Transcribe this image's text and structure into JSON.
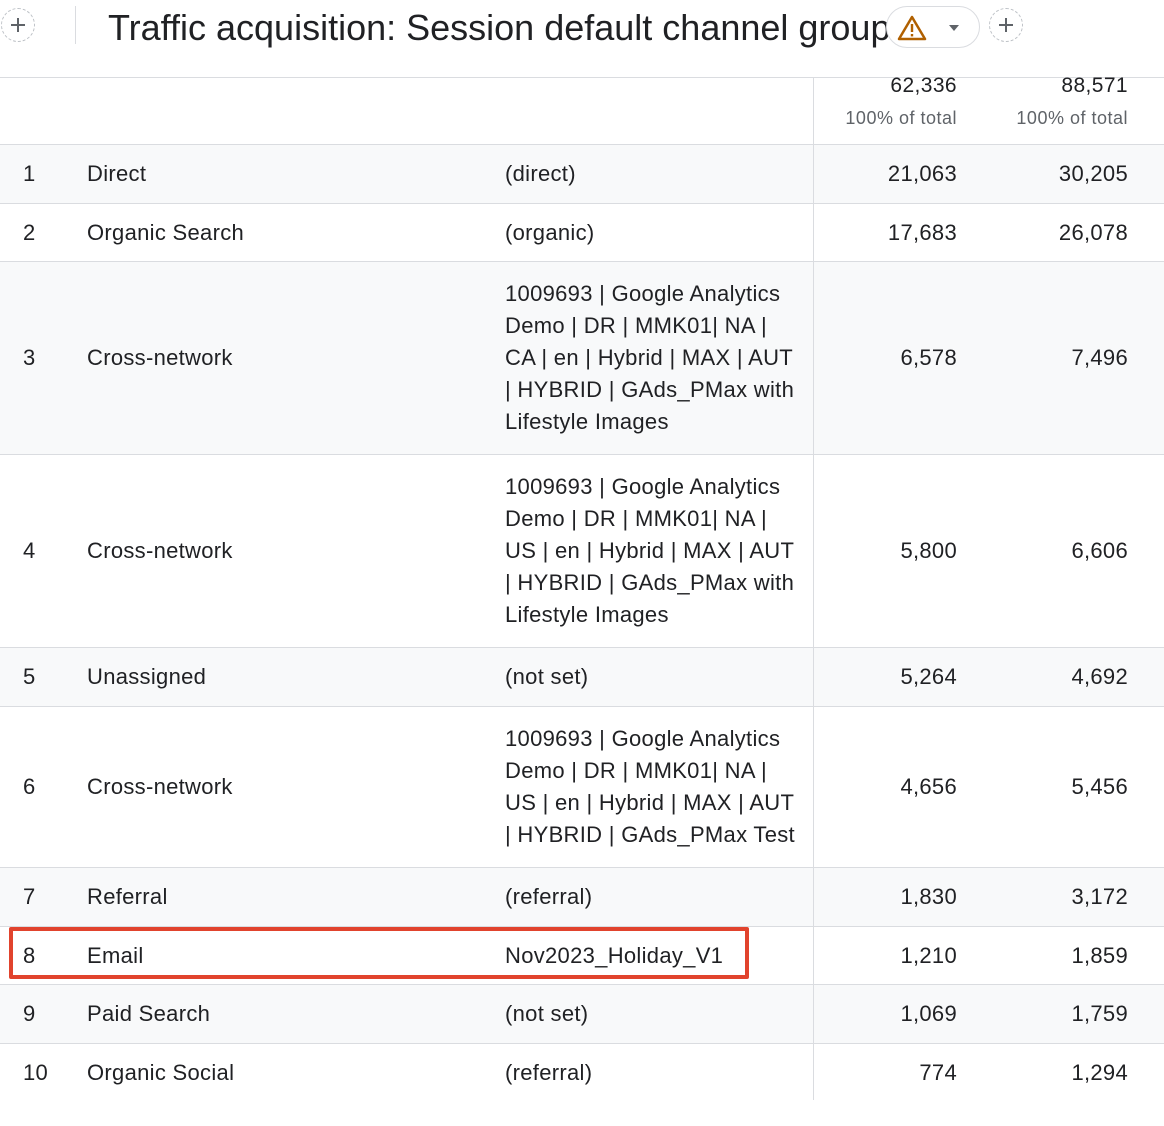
{
  "header": {
    "title": "Traffic acquisition: Session default channel group",
    "icons": [
      "plus-icon",
      "warning-icon",
      "chevron-down-icon",
      "plus-icon"
    ],
    "colors": {
      "warning": "#b06000",
      "highlight": "#e1432d"
    }
  },
  "totals": {
    "metric1": {
      "value": "62,336",
      "percent": "100% of total"
    },
    "metric2": {
      "value": "88,571",
      "percent": "100% of total"
    }
  },
  "rows": [
    {
      "rank": "1",
      "channel": "Direct",
      "campaign": "(direct)",
      "m1": "21,063",
      "m2": "30,205"
    },
    {
      "rank": "2",
      "channel": "Organic Search",
      "campaign": "(organic)",
      "m1": "17,683",
      "m2": "26,078"
    },
    {
      "rank": "3",
      "channel": "Cross-network",
      "campaign": "1009693 | Google Analytics Demo | DR | MMK01| NA | CA | en | Hybrid | MAX | AUT | HYBRID | GAds_PMax with Lifestyle Images",
      "m1": "6,578",
      "m2": "7,496"
    },
    {
      "rank": "4",
      "channel": "Cross-network",
      "campaign": "1009693 | Google Analytics Demo | DR | MMK01| NA | US | en | Hybrid | MAX | AUT | HYBRID | GAds_PMax with Lifestyle Images",
      "m1": "5,800",
      "m2": "6,606"
    },
    {
      "rank": "5",
      "channel": "Unassigned",
      "campaign": "(not set)",
      "m1": "5,264",
      "m2": "4,692"
    },
    {
      "rank": "6",
      "channel": "Cross-network",
      "campaign": "1009693 | Google Analytics Demo | DR | MMK01| NA | US | en | Hybrid | MAX | AUT | HYBRID | GAds_PMax Test",
      "m1": "4,656",
      "m2": "5,456"
    },
    {
      "rank": "7",
      "channel": "Referral",
      "campaign": "(referral)",
      "m1": "1,830",
      "m2": "3,172"
    },
    {
      "rank": "8",
      "channel": "Email",
      "campaign": "Nov2023_Holiday_V1",
      "m1": "1,210",
      "m2": "1,859"
    },
    {
      "rank": "9",
      "channel": "Paid Search",
      "campaign": "(not set)",
      "m1": "1,069",
      "m2": "1,759"
    },
    {
      "rank": "10",
      "channel": "Organic Social",
      "campaign": "(referral)",
      "m1": "774",
      "m2": "1,294"
    }
  ]
}
